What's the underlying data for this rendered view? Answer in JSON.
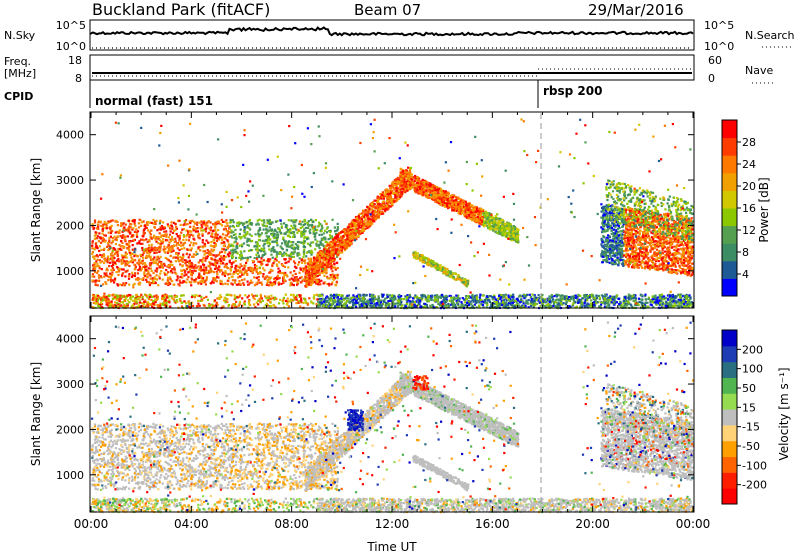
{
  "header": {
    "station": "Buckland Park (fitACF)",
    "beam": "Beam 07",
    "date": "29/Mar/2016"
  },
  "side_labels": {
    "nsky": "N.Sky",
    "nsearch": "N.Search",
    "freq_line1": "Freq.",
    "freq_line2": "[MHz]",
    "nave": "Nave",
    "cpid": "CPID"
  },
  "cpid_labels": [
    "normal (fast) 151",
    "rbsp 200"
  ],
  "colors": {
    "power": [
      "#0000ff",
      "#1e5a96",
      "#3c8c64",
      "#55a050",
      "#8cc800",
      "#d2c800",
      "#f0a000",
      "#ff7800",
      "#ff3c00",
      "#ff0000"
    ],
    "velocity": [
      "#0000c8",
      "#1e3cb4",
      "#2a6e82",
      "#50b450",
      "#96dc50",
      "#bebebe",
      "#ffd278",
      "#ffa000",
      "#ff6400",
      "#ff1e00",
      "#ff0000"
    ],
    "ground_scatter": "#bebebe"
  },
  "chart_data": [
    {
      "type": "line",
      "panel": "noise",
      "ylabels_left": [
        "10^5",
        "10^0"
      ],
      "ylabels_right": [
        "10^5",
        "10^0"
      ],
      "x": [
        "00:00",
        "04:00",
        "08:00",
        "12:00",
        "16:00",
        "20:00",
        "00:00"
      ],
      "series": [
        {
          "name": "N.Sky",
          "style": "solid"
        },
        {
          "name": "N.Search",
          "style": "dotted"
        }
      ]
    },
    {
      "type": "line",
      "panel": "frequency",
      "ylim_left": [
        8,
        18
      ],
      "ylim_right": [
        0,
        60
      ],
      "yticks_left": [
        "18",
        "8"
      ],
      "yticks_right": [
        "60",
        "0"
      ],
      "series": [
        {
          "name": "Freq.",
          "style": "solid"
        },
        {
          "name": "Nave",
          "style": "dotted"
        }
      ]
    },
    {
      "type": "heatmap",
      "panel": "power",
      "xlabel": "",
      "ylabel": "Slant Range [km]",
      "ylim": [
        180,
        4500
      ],
      "yticks": [
        1000,
        2000,
        3000,
        4000
      ],
      "xlim_hours": [
        0,
        24
      ],
      "colorbar": {
        "label": "Power [dB]",
        "ticks": [
          4,
          8,
          12,
          16,
          20,
          24,
          28
        ]
      },
      "mode_change_hour": 18
    },
    {
      "type": "heatmap",
      "panel": "velocity",
      "xlabel": "Time UT",
      "ylabel": "Slant Range [km]",
      "ylim": [
        180,
        4500
      ],
      "yticks": [
        1000,
        2000,
        3000,
        4000
      ],
      "xticks": [
        "00:00",
        "04:00",
        "08:00",
        "12:00",
        "16:00",
        "20:00",
        "00:00"
      ],
      "colorbar": {
        "label": "Velocity [m s⁻¹]",
        "ticks": [
          200,
          100,
          50,
          15,
          -15,
          -50,
          -100,
          -200
        ]
      },
      "mode_change_hour": 18
    }
  ]
}
